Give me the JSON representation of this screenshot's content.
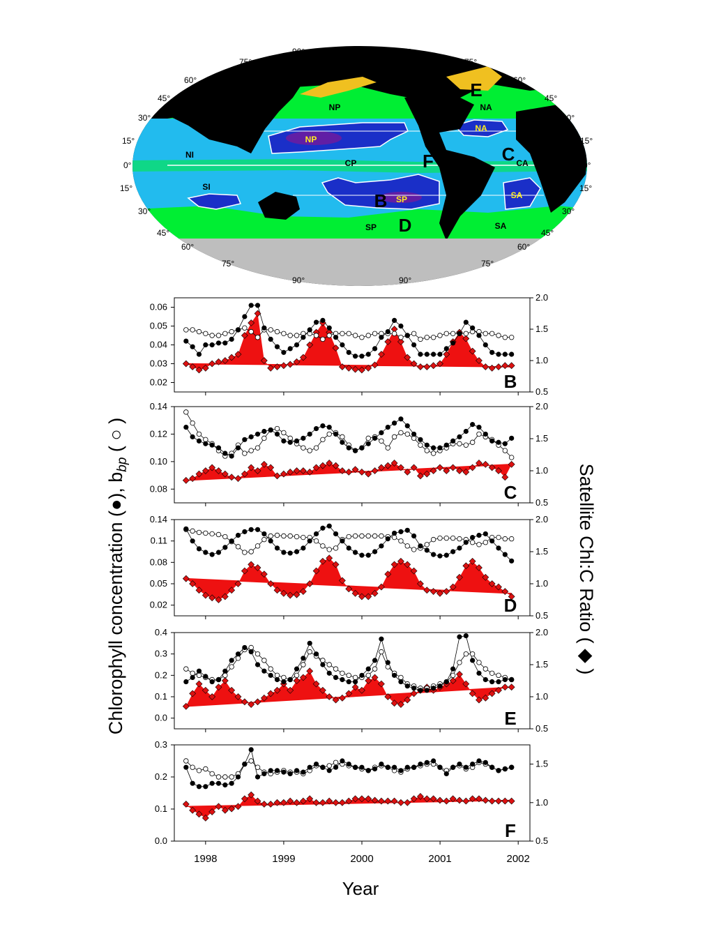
{
  "map": {
    "lat_labels_left": [
      "75°",
      "60°",
      "45°",
      "30°",
      "15°",
      "0°",
      "15°",
      "30°",
      "45°",
      "60°",
      "75°"
    ],
    "lat_labels_right": [
      "75°",
      "60°",
      "45°",
      "30°",
      "15°",
      "0°",
      "15°",
      "30°",
      "45°",
      "60°",
      "75°"
    ],
    "pole_labels": [
      "90°",
      "90°",
      "90°",
      "90°"
    ],
    "region_labels": [
      "NP",
      "NA",
      "NI",
      "CP",
      "CA",
      "SI",
      "SP",
      "SA"
    ],
    "core_labels": [
      "NP",
      "NA",
      "SP",
      "SA"
    ],
    "site_labels": [
      "B",
      "C",
      "D",
      "E",
      "F"
    ],
    "colors": {
      "land": "#000000",
      "ice": "#bebebe",
      "eutrophic": "#00ee33",
      "mesotrophic": "#22bbee",
      "oligotrophic": "#1a2fc8",
      "core": "#7a1a9a",
      "coast": "#f0c020"
    }
  },
  "axes": {
    "xlabel": "Year",
    "ylabel_left": "Chlorophyll concentration (●), b",
    "ylabel_left_sub": "bp",
    "ylabel_left_tail": " ( ○ )",
    "ylabel_right": "Satellite Chl:C Ratio ( ◆ )",
    "xticks": [
      "1998",
      "1999",
      "2000",
      "2001",
      "2002"
    ]
  },
  "colors": {
    "ratio_fill": "#ee1111",
    "ratio_marker": "#dd1111",
    "chl": "#000000",
    "bbp": "#ffffff"
  },
  "chart_data": [
    {
      "type": "line",
      "panel": "B",
      "x_start": 1997.75,
      "x_step": 0.0833,
      "left_ylim": [
        0.015,
        0.065
      ],
      "left_ticks": [
        "0.02",
        "0.03",
        "0.04",
        "0.05",
        "0.06"
      ],
      "right_ylim": [
        0.5,
        2.0
      ],
      "right_ticks": [
        "0.5",
        "1.0",
        "1.5",
        "2.0"
      ],
      "trend": [
        0.95,
        0.9
      ],
      "series": [
        {
          "values": [
            0.042,
            0.039,
            0.035,
            0.04,
            0.04,
            0.041,
            0.041,
            0.043,
            0.048,
            0.055,
            0.061,
            0.061,
            0.049,
            0.043,
            0.039,
            0.036,
            0.038,
            0.04,
            0.044,
            0.048,
            0.052,
            0.053,
            0.049,
            0.044,
            0.04,
            0.036,
            0.034,
            0.034,
            0.035,
            0.038,
            0.044,
            0.047,
            0.053,
            0.05,
            0.045,
            0.04,
            0.035,
            0.035,
            0.035,
            0.035,
            0.038,
            0.041,
            0.046,
            0.052,
            0.049,
            0.045,
            0.04,
            0.036,
            0.035,
            0.035,
            0.035
          ]
        },
        {
          "values": [
            0.048,
            0.048,
            0.047,
            0.046,
            0.045,
            0.045,
            0.046,
            0.047,
            0.048,
            0.049,
            0.047,
            0.044,
            0.048,
            0.048,
            0.047,
            0.046,
            0.045,
            0.045,
            0.046,
            0.046,
            0.045,
            0.043,
            0.045,
            0.046,
            0.046,
            0.046,
            0.045,
            0.044,
            0.045,
            0.046,
            0.046,
            0.046,
            0.046,
            0.044,
            0.045,
            0.046,
            0.043,
            0.044,
            0.044,
            0.045,
            0.046,
            0.046,
            0.046,
            0.046,
            0.047,
            0.047,
            0.046,
            0.046,
            0.045,
            0.044,
            0.044
          ]
        },
        {
          "values": [
            0.95,
            0.9,
            0.85,
            0.88,
            0.95,
            0.98,
            1.0,
            1.05,
            1.1,
            1.4,
            1.6,
            1.75,
            1.0,
            0.88,
            0.9,
            0.92,
            0.94,
            0.98,
            1.05,
            1.25,
            1.45,
            1.6,
            1.45,
            1.2,
            0.9,
            0.88,
            0.86,
            0.85,
            0.88,
            0.93,
            1.1,
            1.3,
            1.5,
            1.3,
            1.05,
            0.95,
            0.9,
            0.9,
            0.92,
            0.95,
            1.1,
            1.3,
            1.45,
            1.35,
            1.15,
            1.0,
            0.9,
            0.88,
            0.9,
            0.92,
            0.92
          ]
        }
      ]
    },
    {
      "type": "line",
      "panel": "C",
      "x_start": 1997.75,
      "x_step": 0.0833,
      "left_ylim": [
        0.07,
        0.14
      ],
      "left_ticks": [
        "0.08",
        "0.10",
        "0.12",
        "0.14"
      ],
      "right_ylim": [
        0.5,
        2.0
      ],
      "right_ticks": [
        "0.5",
        "1.0",
        "1.5",
        "2.0"
      ],
      "trend": [
        0.85,
        1.1
      ],
      "series": [
        {
          "values": [
            0.125,
            0.118,
            0.115,
            0.113,
            0.112,
            0.11,
            0.106,
            0.104,
            0.11,
            0.116,
            0.118,
            0.12,
            0.122,
            0.123,
            0.12,
            0.115,
            0.114,
            0.115,
            0.117,
            0.12,
            0.124,
            0.126,
            0.125,
            0.12,
            0.114,
            0.11,
            0.108,
            0.11,
            0.113,
            0.117,
            0.121,
            0.125,
            0.128,
            0.131,
            0.126,
            0.12,
            0.116,
            0.112,
            0.11,
            0.11,
            0.112,
            0.115,
            0.118,
            0.122,
            0.127,
            0.125,
            0.12,
            0.115,
            0.114,
            0.113,
            0.117
          ]
        },
        {
          "values": [
            0.136,
            0.128,
            0.12,
            0.116,
            0.113,
            0.108,
            0.104,
            0.106,
            0.112,
            0.106,
            0.108,
            0.11,
            0.117,
            0.123,
            0.124,
            0.121,
            0.117,
            0.113,
            0.11,
            0.108,
            0.11,
            0.116,
            0.12,
            0.121,
            0.118,
            0.112,
            0.108,
            0.11,
            0.117,
            0.118,
            0.115,
            0.11,
            0.118,
            0.121,
            0.12,
            0.117,
            0.112,
            0.108,
            0.106,
            0.108,
            0.11,
            0.113,
            0.113,
            0.112,
            0.114,
            0.12,
            0.118,
            0.116,
            0.112,
            0.108,
            0.103
          ]
        },
        {
          "values": [
            0.85,
            0.88,
            0.95,
            1.0,
            1.05,
            1.0,
            0.95,
            0.9,
            0.88,
            0.95,
            1.05,
            1.0,
            1.1,
            1.05,
            0.92,
            0.95,
            0.98,
            1.0,
            1.0,
            0.98,
            1.05,
            1.08,
            1.12,
            1.08,
            1.0,
            0.98,
            1.02,
            0.98,
            0.95,
            1.0,
            1.05,
            1.08,
            1.12,
            1.05,
            0.98,
            1.05,
            0.92,
            0.95,
            1.0,
            1.05,
            1.0,
            1.05,
            1.0,
            0.98,
            1.05,
            1.12,
            1.1,
            1.05,
            1.0,
            0.9,
            1.1
          ]
        }
      ]
    },
    {
      "type": "line",
      "panel": "D",
      "x_start": 1997.75,
      "x_step": 0.0833,
      "left_ylim": [
        0.005,
        0.14
      ],
      "left_ticks": [
        "0.02",
        "0.05",
        "0.08",
        "0.11",
        "0.14"
      ],
      "right_ylim": [
        0.5,
        2.0
      ],
      "right_ticks": [
        "0.5",
        "1.0",
        "1.5",
        "2.0"
      ],
      "trend": [
        1.08,
        0.85
      ],
      "series": [
        {
          "values": [
            0.127,
            0.11,
            0.099,
            0.094,
            0.091,
            0.094,
            0.101,
            0.11,
            0.118,
            0.123,
            0.126,
            0.126,
            0.12,
            0.11,
            0.1,
            0.094,
            0.093,
            0.095,
            0.1,
            0.11,
            0.12,
            0.128,
            0.131,
            0.12,
            0.11,
            0.1,
            0.094,
            0.09,
            0.09,
            0.095,
            0.103,
            0.113,
            0.121,
            0.123,
            0.125,
            0.117,
            0.103,
            0.097,
            0.091,
            0.089,
            0.09,
            0.095,
            0.1,
            0.108,
            0.115,
            0.118,
            0.12,
            0.11,
            0.1,
            0.091,
            0.082
          ]
        },
        {
          "values": [
            0.126,
            0.124,
            0.122,
            0.121,
            0.12,
            0.119,
            0.116,
            0.109,
            0.102,
            0.094,
            0.095,
            0.103,
            0.112,
            0.117,
            0.118,
            0.117,
            0.117,
            0.116,
            0.115,
            0.115,
            0.11,
            0.103,
            0.098,
            0.1,
            0.112,
            0.116,
            0.117,
            0.117,
            0.117,
            0.117,
            0.117,
            0.116,
            0.115,
            0.11,
            0.103,
            0.098,
            0.1,
            0.105,
            0.112,
            0.114,
            0.114,
            0.114,
            0.113,
            0.112,
            0.108,
            0.105,
            0.108,
            0.115,
            0.115,
            0.113,
            0.113
          ]
        },
        {
          "values": [
            1.08,
            1.0,
            0.9,
            0.82,
            0.78,
            0.75,
            0.8,
            0.9,
            1.0,
            1.2,
            1.3,
            1.25,
            1.15,
            1.0,
            0.9,
            0.85,
            0.82,
            0.83,
            0.88,
            1.0,
            1.2,
            1.35,
            1.4,
            1.3,
            1.05,
            0.92,
            0.85,
            0.8,
            0.8,
            0.85,
            0.95,
            1.15,
            1.3,
            1.35,
            1.3,
            1.2,
            1.0,
            0.9,
            0.88,
            0.85,
            0.88,
            0.95,
            1.1,
            1.28,
            1.35,
            1.25,
            1.1,
            1.0,
            0.95,
            0.88,
            0.8
          ]
        }
      ]
    },
    {
      "type": "line",
      "panel": "E",
      "x_start": 1997.75,
      "x_step": 0.0833,
      "left_ylim": [
        -0.05,
        0.4
      ],
      "left_ticks": [
        "0.0",
        "0.1",
        "0.2",
        "0.3",
        "0.4"
      ],
      "right_ylim": [
        0.5,
        2.0
      ],
      "right_ticks": [
        "0.5",
        "1.0",
        "1.5",
        "2.0"
      ],
      "trend": [
        0.85,
        1.15
      ],
      "series": [
        {
          "values": [
            0.17,
            0.19,
            0.22,
            0.195,
            0.17,
            0.18,
            0.22,
            0.27,
            0.3,
            0.33,
            0.31,
            0.25,
            0.22,
            0.2,
            0.18,
            0.17,
            0.18,
            0.23,
            0.28,
            0.35,
            0.3,
            0.25,
            0.21,
            0.19,
            0.18,
            0.17,
            0.17,
            0.2,
            0.23,
            0.27,
            0.37,
            0.26,
            0.2,
            0.17,
            0.15,
            0.14,
            0.13,
            0.13,
            0.14,
            0.15,
            0.17,
            0.23,
            0.38,
            0.385,
            0.27,
            0.21,
            0.18,
            0.17,
            0.17,
            0.18,
            0.18
          ]
        },
        {
          "values": [
            0.23,
            0.21,
            0.2,
            0.19,
            0.18,
            0.18,
            0.2,
            0.24,
            0.28,
            0.32,
            0.33,
            0.3,
            0.27,
            0.23,
            0.2,
            0.19,
            0.18,
            0.2,
            0.25,
            0.31,
            0.29,
            0.27,
            0.25,
            0.23,
            0.21,
            0.2,
            0.19,
            0.19,
            0.2,
            0.23,
            0.31,
            0.24,
            0.21,
            0.19,
            0.16,
            0.15,
            0.14,
            0.14,
            0.15,
            0.16,
            0.17,
            0.2,
            0.26,
            0.3,
            0.3,
            0.26,
            0.23,
            0.21,
            0.2,
            0.19,
            0.18
          ]
        },
        {
          "values": [
            0.85,
            1.05,
            1.2,
            1.1,
            1.0,
            1.15,
            1.25,
            1.1,
            1.0,
            0.92,
            0.88,
            0.92,
            0.98,
            1.05,
            1.1,
            1.2,
            1.1,
            1.25,
            1.3,
            1.4,
            1.2,
            1.1,
            1.0,
            0.95,
            0.98,
            1.05,
            1.15,
            1.1,
            1.25,
            1.3,
            1.2,
            1.0,
            0.9,
            0.88,
            0.95,
            1.05,
            1.1,
            1.15,
            1.1,
            1.15,
            1.2,
            1.25,
            1.35,
            1.2,
            1.05,
            0.95,
            0.98,
            1.05,
            1.1,
            1.15,
            1.15
          ]
        }
      ]
    },
    {
      "type": "line",
      "panel": "F",
      "x_start": 1997.75,
      "x_step": 0.0833,
      "left_ylim": [
        0.0,
        0.3
      ],
      "left_ticks": [
        "0.0",
        "0.1",
        "0.2",
        "0.3"
      ],
      "right_ylim": [
        0.5,
        1.75
      ],
      "right_ticks": [
        "0.5",
        "1.0",
        "1.5"
      ],
      "trend": [
        0.95,
        1.03
      ],
      "series": [
        {
          "values": [
            0.23,
            0.18,
            0.17,
            0.17,
            0.18,
            0.18,
            0.175,
            0.18,
            0.2,
            0.24,
            0.285,
            0.2,
            0.21,
            0.22,
            0.22,
            0.215,
            0.21,
            0.22,
            0.215,
            0.23,
            0.24,
            0.23,
            0.22,
            0.23,
            0.25,
            0.24,
            0.23,
            0.23,
            0.22,
            0.225,
            0.24,
            0.23,
            0.23,
            0.22,
            0.23,
            0.23,
            0.24,
            0.245,
            0.25,
            0.23,
            0.21,
            0.23,
            0.24,
            0.23,
            0.24,
            0.25,
            0.245,
            0.23,
            0.22,
            0.225,
            0.23
          ]
        },
        {
          "values": [
            0.25,
            0.23,
            0.22,
            0.225,
            0.21,
            0.2,
            0.2,
            0.2,
            0.21,
            0.24,
            0.25,
            0.23,
            0.215,
            0.21,
            0.215,
            0.22,
            0.215,
            0.215,
            0.21,
            0.22,
            0.235,
            0.23,
            0.235,
            0.245,
            0.24,
            0.235,
            0.23,
            0.225,
            0.22,
            0.23,
            0.235,
            0.23,
            0.22,
            0.215,
            0.225,
            0.23,
            0.235,
            0.24,
            0.24,
            0.23,
            0.22,
            0.23,
            0.235,
            0.225,
            0.23,
            0.245,
            0.24,
            0.23,
            0.22,
            0.225,
            0.23
          ]
        },
        {
          "values": [
            0.98,
            0.9,
            0.85,
            0.8,
            0.88,
            0.95,
            0.9,
            0.92,
            0.95,
            1.05,
            1.1,
            1.02,
            0.98,
            0.98,
            1.0,
            1.0,
            1.02,
            1.0,
            1.02,
            1.05,
            1.0,
            1.0,
            1.02,
            1.0,
            1.0,
            1.02,
            1.05,
            1.05,
            1.05,
            1.03,
            1.02,
            1.02,
            1.02,
            1.0,
            1.0,
            1.05,
            1.08,
            1.05,
            1.05,
            1.03,
            1.02,
            1.05,
            1.03,
            1.02,
            1.05,
            1.05,
            1.03,
            1.02,
            1.02,
            1.02,
            1.02
          ]
        }
      ]
    }
  ]
}
